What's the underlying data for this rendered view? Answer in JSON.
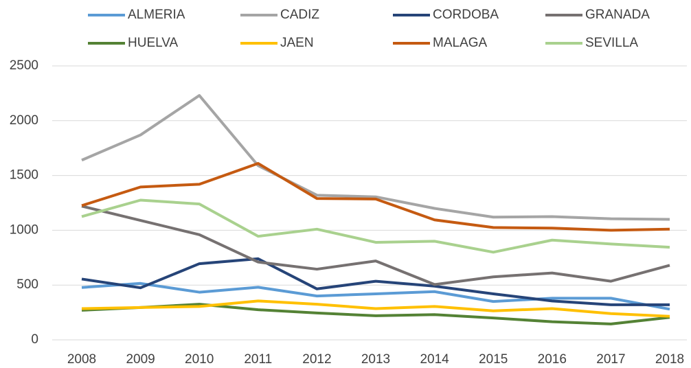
{
  "chart_data": {
    "type": "line",
    "x": [
      "2008",
      "2009",
      "2010",
      "2011",
      "2012",
      "2013",
      "2014",
      "2015",
      "2016",
      "2017",
      "2018"
    ],
    "series": [
      {
        "name": "ALMERIA",
        "color": "#5b9bd5",
        "values": [
          478,
          515,
          435,
          480,
          400,
          420,
          440,
          350,
          380,
          380,
          280
        ]
      },
      {
        "name": "CADIZ",
        "color": "#a5a5a5",
        "values": [
          1640,
          1870,
          2230,
          1590,
          1320,
          1305,
          1200,
          1120,
          1125,
          1105,
          1100
        ]
      },
      {
        "name": "CORDOBA",
        "color": "#264478",
        "values": [
          555,
          475,
          695,
          740,
          465,
          535,
          490,
          420,
          355,
          320,
          320
        ]
      },
      {
        "name": "GRANADA",
        "color": "#767171",
        "values": [
          1220,
          1090,
          960,
          710,
          645,
          720,
          505,
          575,
          610,
          535,
          680
        ]
      },
      {
        "name": "HUELVA",
        "color": "#548235",
        "values": [
          270,
          295,
          325,
          275,
          245,
          220,
          230,
          200,
          165,
          145,
          205
        ]
      },
      {
        "name": "JAEN",
        "color": "#ffc000",
        "values": [
          285,
          295,
          305,
          355,
          325,
          285,
          305,
          265,
          285,
          240,
          215
        ]
      },
      {
        "name": "MALAGA",
        "color": "#c55a11",
        "values": [
          1225,
          1395,
          1420,
          1610,
          1290,
          1285,
          1095,
          1025,
          1020,
          1000,
          1010
        ]
      },
      {
        "name": "SEVILLA",
        "color": "#a9d18e",
        "values": [
          1125,
          1275,
          1240,
          945,
          1010,
          890,
          900,
          800,
          910,
          875,
          845
        ]
      }
    ],
    "ylim": [
      0,
      2500
    ],
    "yticks": [
      0,
      500,
      1000,
      1500,
      2000,
      2500
    ],
    "grid": true,
    "legend": "top"
  }
}
